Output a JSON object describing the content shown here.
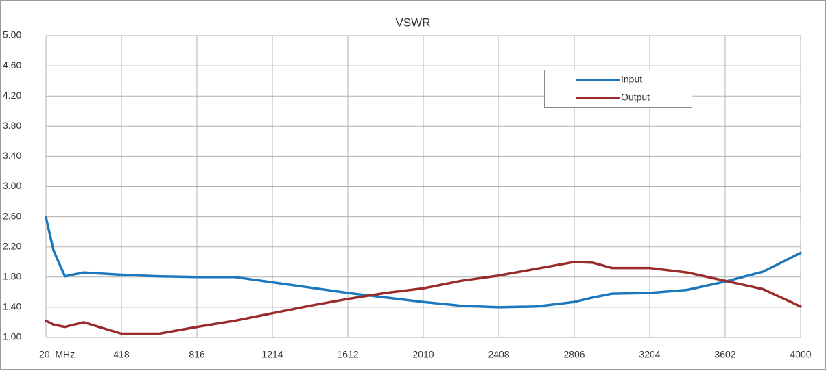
{
  "chart_data": {
    "type": "line",
    "title": "VSWR",
    "x": [
      20,
      60,
      120,
      219,
      418,
      617,
      816,
      1015,
      1214,
      1413,
      1612,
      1811,
      2010,
      2209,
      2408,
      2607,
      2806,
      2905,
      3005,
      3204,
      3403,
      3602,
      3801,
      4000
    ],
    "series": [
      {
        "name": "Input",
        "color": "#1b78bd",
        "values": [
          2.59,
          2.15,
          1.81,
          1.86,
          1.83,
          1.81,
          1.8,
          1.8,
          1.73,
          1.66,
          1.59,
          1.53,
          1.47,
          1.42,
          1.4,
          1.41,
          1.47,
          1.53,
          1.58,
          1.59,
          1.63,
          1.74,
          1.87,
          2.12
        ]
      },
      {
        "name": "Output",
        "color": "#9b2b2b",
        "values": [
          1.22,
          1.17,
          1.14,
          1.2,
          1.05,
          1.05,
          1.14,
          1.22,
          1.32,
          1.42,
          1.51,
          1.59,
          1.65,
          1.75,
          1.82,
          1.91,
          2.0,
          1.99,
          1.92,
          1.92,
          1.86,
          1.75,
          1.64,
          1.41
        ]
      }
    ],
    "xlim": [
      20,
      4000
    ],
    "xticks": [
      {
        "value": 20,
        "label": "20  MHz"
      },
      418,
      816,
      1214,
      1612,
      2010,
      2408,
      2806,
      3204,
      3602,
      4000
    ],
    "ylim": [
      1,
      5
    ],
    "yticks": [
      {
        "value": 1,
        "label": "1.00"
      },
      {
        "value": 1.4,
        "label": "1.40"
      },
      {
        "value": 1.8,
        "label": "1.80"
      },
      {
        "value": 2.2,
        "label": "2.20"
      },
      {
        "value": 2.6,
        "label": "2.60"
      },
      {
        "value": 3,
        "label": "3.00"
      },
      {
        "value": 3.4,
        "label": "3.40"
      },
      {
        "value": 3.8,
        "label": "3.80"
      },
      {
        "value": 4.2,
        "label": "4.20"
      },
      {
        "value": 4.6,
        "label": "4.60"
      },
      {
        "value": 5,
        "label": "5.00"
      }
    ],
    "grid": true
  }
}
